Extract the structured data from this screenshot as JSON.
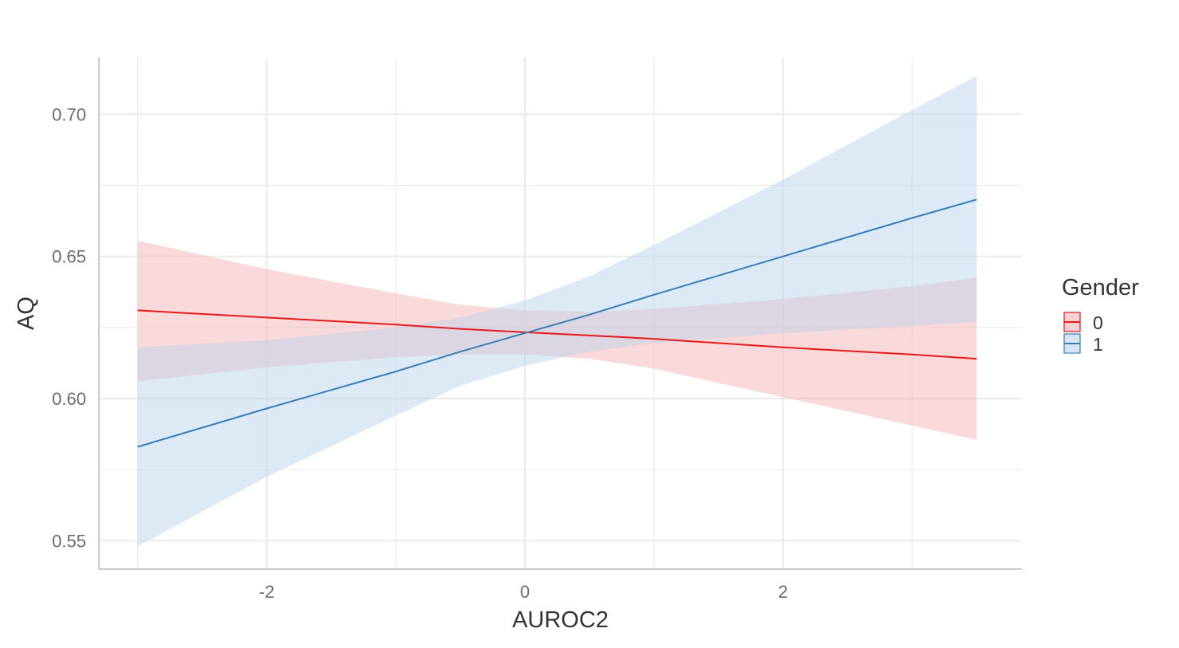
{
  "chart_data": {
    "type": "line",
    "title": "",
    "xlabel": "AUROC2",
    "ylabel": "AQ",
    "xlim": [
      -3.3,
      3.85
    ],
    "ylim": [
      0.54,
      0.72
    ],
    "x_ticks": [
      -2,
      0,
      2
    ],
    "x_tick_labels": [
      "-2",
      "0",
      "2"
    ],
    "y_ticks": [
      0.55,
      0.6,
      0.65,
      0.7
    ],
    "y_tick_labels": [
      "0.55",
      "0.60",
      "0.65",
      "0.70"
    ],
    "grid": true,
    "legend": {
      "title": "Gender",
      "position": "right"
    },
    "series": [
      {
        "name": "0",
        "color": "#e41a1c",
        "fill": "#f5b3b8",
        "x": [
          -3,
          -2,
          -1,
          -0.5,
          0,
          0.5,
          1,
          2,
          3,
          3.5
        ],
        "y": [
          0.631,
          0.6285,
          0.626,
          0.6245,
          0.6233,
          0.6222,
          0.621,
          0.618,
          0.6155,
          0.614
        ],
        "lower": [
          0.606,
          0.611,
          0.6145,
          0.6155,
          0.6155,
          0.614,
          0.6105,
          0.6005,
          0.5905,
          0.5855
        ],
        "upper": [
          0.6555,
          0.6455,
          0.637,
          0.633,
          0.631,
          0.6305,
          0.6315,
          0.635,
          0.6395,
          0.6425
        ]
      },
      {
        "name": "1",
        "color": "#377eb8",
        "fill": "#bcd4ea",
        "x": [
          -3,
          -2,
          -1,
          -0.5,
          0,
          0.5,
          1,
          2,
          3,
          3.5
        ],
        "y": [
          0.583,
          0.5965,
          0.6095,
          0.6165,
          0.623,
          0.6295,
          0.6365,
          0.65,
          0.6635,
          0.67
        ],
        "lower": [
          0.548,
          0.5725,
          0.594,
          0.6045,
          0.6115,
          0.6165,
          0.6195,
          0.623,
          0.6255,
          0.627
        ],
        "upper": [
          0.618,
          0.6205,
          0.625,
          0.6285,
          0.6345,
          0.643,
          0.654,
          0.677,
          0.7015,
          0.7135
        ]
      }
    ]
  }
}
